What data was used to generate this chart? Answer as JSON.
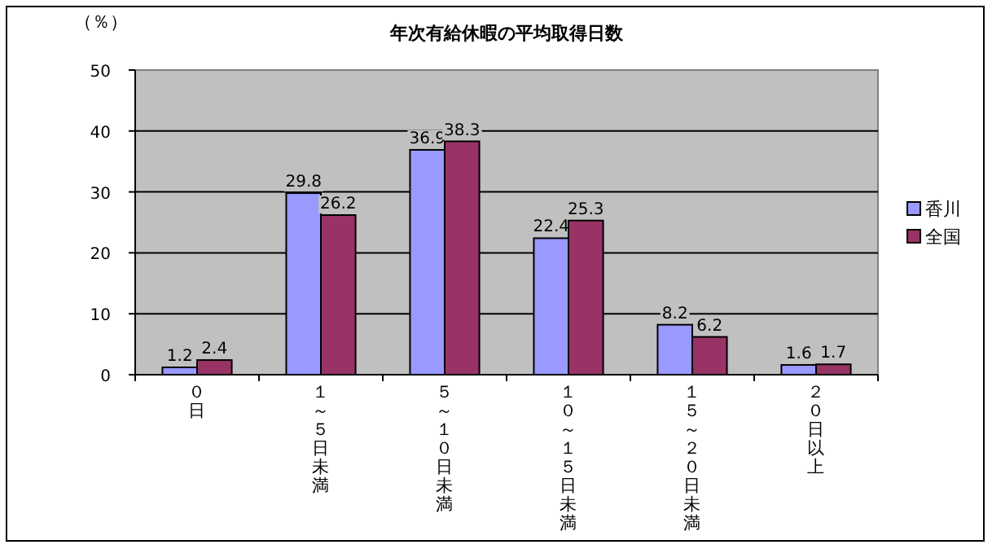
{
  "chart_data": {
    "type": "bar",
    "title": "年次有給休暇の平均取得日数",
    "ylabel": "（％）",
    "categories": [
      "０日",
      "１～５日未満",
      "５～１０日未満",
      "１０～１５日未満",
      "１５～２０日未満",
      "２０日以上"
    ],
    "series": [
      {
        "name": "香川",
        "color": "#9999ff",
        "values": [
          1.2,
          29.8,
          36.9,
          22.4,
          8.2,
          1.6
        ]
      },
      {
        "name": "全国",
        "color": "#993366",
        "values": [
          2.4,
          26.2,
          38.3,
          25.3,
          6.2,
          1.7
        ]
      }
    ],
    "ylim": [
      0,
      50
    ],
    "yticks": [
      0,
      10,
      20,
      30,
      40,
      50
    ],
    "grid": "y",
    "legend": "right",
    "data_labels": true
  }
}
